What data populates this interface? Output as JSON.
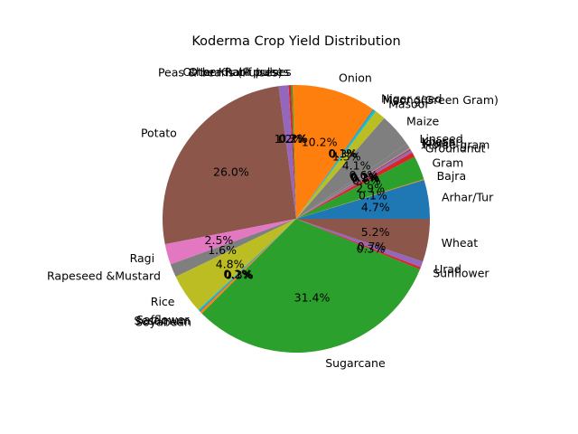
{
  "chart_data": {
    "type": "pie",
    "title": "Koderma Crop Yield Distribution",
    "start_angle_deg": 0,
    "direction": "counterclockwise",
    "slices": [
      {
        "label": "Arhar/Tur",
        "pct": 4.7,
        "display": "4.7%",
        "color": "#1f77b4"
      },
      {
        "label": "Bajra",
        "pct": 0.1,
        "display": "0.1%",
        "color": "#ff7f0e"
      },
      {
        "label": "Gram",
        "pct": 2.9,
        "display": "2.9%",
        "color": "#2ca02c"
      },
      {
        "label": "Groundnut",
        "pct": 0.6,
        "display": "0.6%",
        "color": "#d62728"
      },
      {
        "label": "Horse-gram",
        "pct": 0.3,
        "display": "0.3%",
        "color": "#9467bd"
      },
      {
        "label": "Jowar",
        "pct": 0.2,
        "display": "0.2%",
        "color": "#8c564b"
      },
      {
        "label": "Khesari",
        "pct": 0.1,
        "display": "0.1%",
        "color": "#e377c2"
      },
      {
        "label": "Linseed",
        "pct": 0.6,
        "display": "0.6%",
        "color": "#7f7f7f"
      },
      {
        "label": "Maize",
        "pct": 4.1,
        "display": "4.1%",
        "color": "#7f7f7f"
      },
      {
        "label": "Masoor",
        "pct": 1.3,
        "display": "1.3%",
        "color": "#bcbd22"
      },
      {
        "label": "Moong(Green Gram)",
        "pct": 0.3,
        "display": "0.3%",
        "color": "#17becf"
      },
      {
        "label": "Niger seed",
        "pct": 0.1,
        "display": "0.1%",
        "color": "#1f77b4"
      },
      {
        "label": "Onion",
        "pct": 10.2,
        "display": "10.2%",
        "color": "#ff7f0e"
      },
      {
        "label": "Other Kharif pulses",
        "pct": 0.2,
        "display": "0.2%",
        "color": "#2ca02c"
      },
      {
        "label": "Other Rabi pulses",
        "pct": 0.3,
        "display": "0.3%",
        "color": "#d62728"
      },
      {
        "label": "Peas & beans (Pulses)",
        "pct": 1.2,
        "display": "1.2%",
        "color": "#9467bd"
      },
      {
        "label": "Potato",
        "pct": 26.0,
        "display": "26.0%",
        "color": "#8c564b"
      },
      {
        "label": "Ragi",
        "pct": 2.5,
        "display": "2.5%",
        "color": "#e377c2"
      },
      {
        "label": "Rapeseed &Mustard",
        "pct": 1.6,
        "display": "1.6%",
        "color": "#7f7f7f"
      },
      {
        "label": "Rice",
        "pct": 4.8,
        "display": "4.8%",
        "color": "#bcbd22"
      },
      {
        "label": "Safflower",
        "pct": 0.2,
        "display": "0.2%",
        "color": "#17becf"
      },
      {
        "label": "Sesamum",
        "pct": 0.1,
        "display": "0.1%",
        "color": "#1f77b4"
      },
      {
        "label": "Soyabean",
        "pct": 0.3,
        "display": "0.3%",
        "color": "#ff7f0e"
      },
      {
        "label": "Sugarcane",
        "pct": 31.4,
        "display": "31.4%",
        "color": "#2ca02c"
      },
      {
        "label": "Sunflower",
        "pct": 0.3,
        "display": "0.3%",
        "color": "#d62728"
      },
      {
        "label": "Urad",
        "pct": 0.7,
        "display": "0.7%",
        "color": "#9467bd"
      },
      {
        "label": "Wheat",
        "pct": 5.2,
        "display": "5.2%",
        "color": "#8c564b"
      }
    ]
  }
}
